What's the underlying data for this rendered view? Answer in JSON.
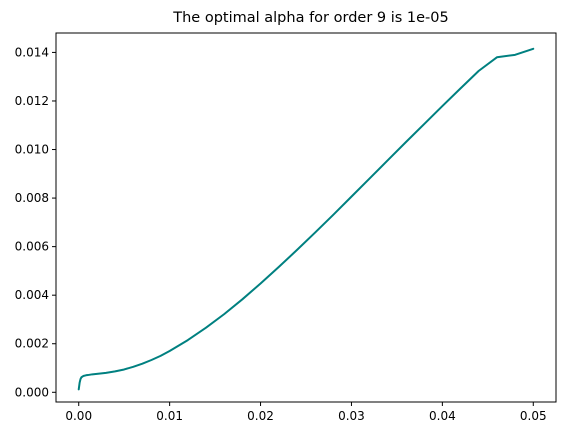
{
  "chart_data": {
    "type": "line",
    "title": "The optimal alpha for order 9 is 1e-05",
    "xlabel": "",
    "ylabel": "",
    "xlim": [
      -0.0025,
      0.0525
    ],
    "ylim": [
      -0.0004,
      0.0148
    ],
    "grid": false,
    "x_ticks": [
      0.0,
      0.01,
      0.02,
      0.03,
      0.04,
      0.05
    ],
    "x_tick_labels": [
      "0.00",
      "0.01",
      "0.02",
      "0.03",
      "0.04",
      "0.05"
    ],
    "y_ticks": [
      0.0,
      0.002,
      0.004,
      0.006,
      0.008,
      0.01,
      0.012,
      0.014
    ],
    "y_tick_labels": [
      "0.000",
      "0.002",
      "0.004",
      "0.006",
      "0.008",
      "0.010",
      "0.012",
      "0.014"
    ],
    "series": [
      {
        "color": "#008080",
        "x": [
          0.0,
          0.0001,
          0.0002,
          0.0003,
          0.0005,
          0.0008,
          0.001,
          0.0015,
          0.002,
          0.003,
          0.004,
          0.005,
          0.006,
          0.007,
          0.008,
          0.009,
          0.01,
          0.012,
          0.014,
          0.016,
          0.018,
          0.02,
          0.022,
          0.024,
          0.026,
          0.028,
          0.03,
          0.032,
          0.034,
          0.036,
          0.038,
          0.04,
          0.042,
          0.044,
          0.046,
          0.048,
          0.05
        ],
        "y": [
          0.00012,
          0.0004,
          0.00055,
          0.00062,
          0.00067,
          0.0007,
          0.00071,
          0.00074,
          0.00076,
          0.0008,
          0.00086,
          0.00094,
          0.00105,
          0.00118,
          0.00133,
          0.0015,
          0.0017,
          0.00215,
          0.00266,
          0.00322,
          0.00383,
          0.00448,
          0.00516,
          0.00586,
          0.00658,
          0.00731,
          0.00806,
          0.00881,
          0.00956,
          0.01031,
          0.01105,
          0.01179,
          0.01252,
          0.01324,
          0.0138,
          0.0139,
          0.01415
        ]
      }
    ]
  }
}
